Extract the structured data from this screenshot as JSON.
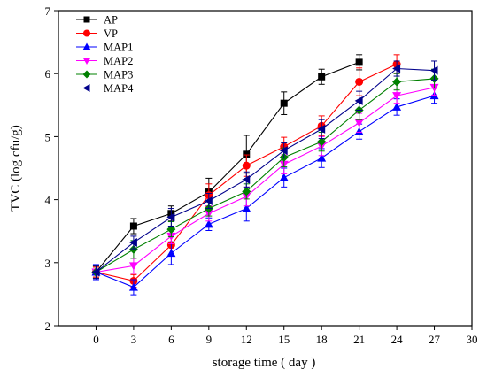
{
  "chart_data": {
    "type": "line",
    "title": "",
    "xlabel": "storage time ( day )",
    "ylabel": "TVC (log cfu/g)",
    "xlim": [
      -3,
      30
    ],
    "ylim": [
      2,
      7
    ],
    "xticks": [
      0,
      3,
      6,
      9,
      12,
      15,
      18,
      21,
      24,
      27,
      30
    ],
    "yticks": [
      2,
      3,
      4,
      5,
      6,
      7
    ],
    "grid": false,
    "legend_position": "top-left",
    "series": [
      {
        "name": "AP",
        "color": "#000000",
        "marker": "square",
        "x": [
          0,
          3,
          6,
          9,
          12,
          15,
          18,
          21
        ],
        "y": [
          2.85,
          3.58,
          3.78,
          4.12,
          4.72,
          5.53,
          5.95,
          6.18
        ],
        "err": [
          0.08,
          0.12,
          0.12,
          0.22,
          0.3,
          0.18,
          0.12,
          0.12
        ]
      },
      {
        "name": "VP",
        "color": "#ff0000",
        "marker": "circle",
        "x": [
          0,
          3,
          6,
          9,
          12,
          15,
          18,
          21,
          24
        ],
        "y": [
          2.85,
          2.71,
          3.28,
          4.07,
          4.54,
          4.84,
          5.17,
          5.87,
          6.15
        ],
        "err": [
          0.08,
          0.1,
          0.15,
          0.18,
          0.17,
          0.15,
          0.16,
          0.22,
          0.15
        ]
      },
      {
        "name": "MAP1",
        "color": "#0000ff",
        "marker": "triangle-up",
        "x": [
          0,
          3,
          6,
          9,
          12,
          15,
          18,
          21,
          24,
          27
        ],
        "y": [
          2.85,
          2.61,
          3.15,
          3.61,
          3.86,
          4.35,
          4.66,
          5.08,
          5.47,
          5.65
        ],
        "err": [
          0.12,
          0.12,
          0.18,
          0.1,
          0.2,
          0.15,
          0.15,
          0.12,
          0.13,
          0.12
        ]
      },
      {
        "name": "MAP2",
        "color": "#ff00ff",
        "marker": "triangle-down",
        "x": [
          0,
          3,
          6,
          9,
          12,
          15,
          18,
          21,
          24,
          27
        ],
        "y": [
          2.85,
          2.95,
          3.42,
          3.78,
          4.05,
          4.56,
          4.85,
          5.22,
          5.65,
          5.78
        ],
        "err": [
          0.1,
          0.12,
          0.12,
          0.12,
          0.15,
          0.15,
          0.15,
          0.15,
          0.12,
          0.12
        ]
      },
      {
        "name": "MAP3",
        "color": "#008000",
        "marker": "diamond",
        "x": [
          0,
          3,
          6,
          9,
          12,
          15,
          18,
          21,
          24,
          27
        ],
        "y": [
          2.85,
          3.21,
          3.53,
          3.86,
          4.13,
          4.67,
          4.92,
          5.42,
          5.87,
          5.92
        ],
        "err": [
          0.1,
          0.14,
          0.12,
          0.12,
          0.12,
          0.15,
          0.15,
          0.15,
          0.13,
          0.15
        ]
      },
      {
        "name": "MAP4",
        "color": "#00008b",
        "marker": "triangle-left",
        "x": [
          0,
          3,
          6,
          9,
          12,
          15,
          18,
          21,
          24,
          27
        ],
        "y": [
          2.85,
          3.32,
          3.72,
          3.98,
          4.32,
          4.78,
          5.12,
          5.57,
          6.08,
          6.05
        ],
        "err": [
          0.1,
          0.1,
          0.14,
          0.12,
          0.12,
          0.12,
          0.15,
          0.15,
          0.12,
          0.15
        ]
      }
    ]
  }
}
